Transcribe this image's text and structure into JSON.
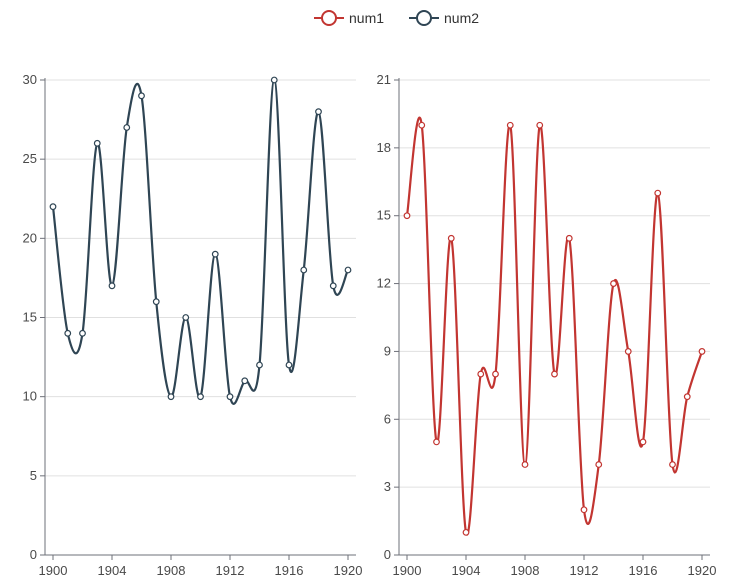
{
  "legend": {
    "items": [
      {
        "label": "num1",
        "color": "#c23531"
      },
      {
        "label": "num2",
        "color": "#2f4554"
      }
    ]
  },
  "chart_data": [
    {
      "type": "line",
      "smooth": true,
      "x": [
        1900,
        1901,
        1902,
        1903,
        1904,
        1905,
        1906,
        1907,
        1908,
        1909,
        1910,
        1911,
        1912,
        1913,
        1914,
        1915,
        1916,
        1917,
        1918,
        1919,
        1920
      ],
      "series": [
        {
          "name": "num2",
          "color": "#2f4554",
          "values": [
            22,
            14,
            14,
            26,
            17,
            27,
            29,
            16,
            10,
            15,
            10,
            19,
            10,
            11,
            12,
            30,
            12,
            18,
            28,
            17,
            18
          ]
        }
      ],
      "xlim": [
        1900,
        1920
      ],
      "xticks": [
        1900,
        1904,
        1908,
        1912,
        1916,
        1920
      ],
      "ylim": [
        0,
        30
      ],
      "yticks": [
        0,
        5,
        10,
        15,
        20,
        25,
        30
      ],
      "grid": true
    },
    {
      "type": "line",
      "smooth": true,
      "x": [
        1900,
        1901,
        1902,
        1903,
        1904,
        1905,
        1906,
        1907,
        1908,
        1909,
        1910,
        1911,
        1912,
        1913,
        1914,
        1915,
        1916,
        1917,
        1918,
        1919,
        1920
      ],
      "series": [
        {
          "name": "num1",
          "color": "#c23531",
          "values": [
            15,
            19,
            5,
            14,
            1,
            8,
            8,
            19,
            4,
            19,
            8,
            14,
            2,
            4,
            12,
            9,
            5,
            16,
            4,
            7,
            9
          ]
        }
      ],
      "xlim": [
        1900,
        1920
      ],
      "xticks": [
        1900,
        1904,
        1908,
        1912,
        1916,
        1920
      ],
      "ylim": [
        0,
        21
      ],
      "yticks": [
        0,
        3,
        6,
        9,
        12,
        15,
        18,
        21
      ],
      "grid": true
    }
  ]
}
